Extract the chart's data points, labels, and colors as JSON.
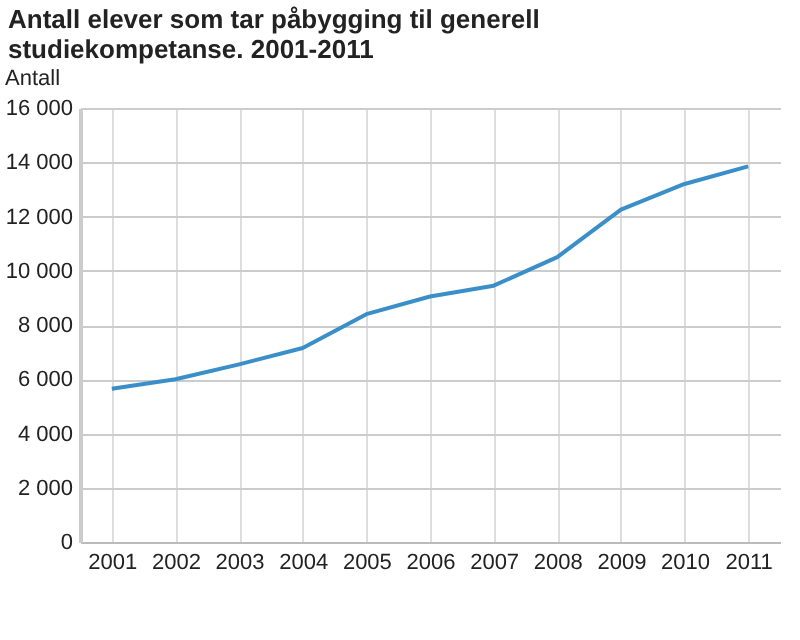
{
  "chart_data": {
    "type": "line",
    "title": "Antall elever som tar påbygging til generell studiekompetanse. 2001-2011",
    "ylabel": "Antall",
    "categories": [
      "2001",
      "2002",
      "2003",
      "2004",
      "2005",
      "2006",
      "2007",
      "2008",
      "2009",
      "2010",
      "2011"
    ],
    "series": [
      {
        "color": "#3a8fc9",
        "values": [
          5650,
          6000,
          6550,
          7150,
          8400,
          9050,
          9450,
          10500,
          12250,
          13200,
          13850
        ]
      }
    ],
    "ylim": [
      0,
      16000
    ],
    "yticks": [
      {
        "value": 0,
        "label": "0"
      },
      {
        "value": 2000,
        "label": "2 000"
      },
      {
        "value": 4000,
        "label": "4 000"
      },
      {
        "value": 6000,
        "label": "6 000"
      },
      {
        "value": 8000,
        "label": "8 000"
      },
      {
        "value": 10000,
        "label": "10 000"
      },
      {
        "value": 12000,
        "label": "12 000"
      },
      {
        "value": 14000,
        "label": "14 000"
      },
      {
        "value": 16000,
        "label": "16 000"
      }
    ],
    "grid": true,
    "marker": "none",
    "line_style": "solid",
    "legend": false
  }
}
